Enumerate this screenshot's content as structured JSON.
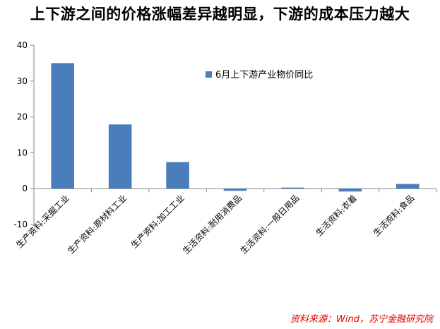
{
  "title": "上下游之间的价格涨幅差异越明显，下游的成本压力越大",
  "source": "资料来源：Wind，苏宁金融研究院",
  "colors": {
    "bar": "#4a7ebb",
    "axis": "#868686",
    "title": "#000000",
    "source": "#e00000"
  },
  "chart_data": {
    "type": "bar",
    "categories": [
      "生产资料:采掘工业",
      "生产资料:原材料工业",
      "生产资料:加工工业",
      "生活资料:耐用消费品",
      "生活资料:一般日用品",
      "生活资料:衣着",
      "生活资料:食品"
    ],
    "series": [
      {
        "name": "6月上下游产业物价同比",
        "values": [
          35.0,
          17.9,
          7.4,
          -0.6,
          0.3,
          -0.8,
          1.3
        ]
      }
    ],
    "ylim": [
      -10,
      40
    ],
    "yticks": [
      -10,
      0,
      10,
      20,
      30,
      40
    ],
    "grid": false,
    "legend": "top-center"
  }
}
